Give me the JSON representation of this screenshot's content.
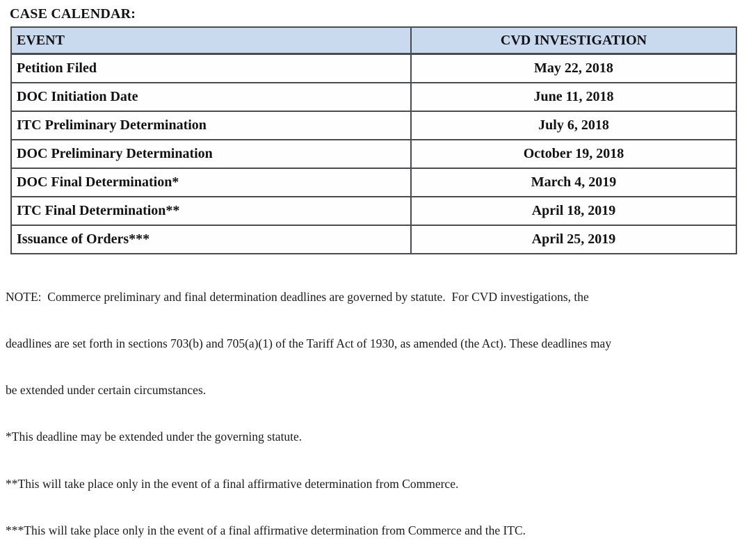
{
  "page_title": "CASE CALENDAR:",
  "table": {
    "columns": [
      "EVENT",
      "CVD INVESTIGATION"
    ],
    "rows": [
      {
        "event": "Petition Filed",
        "date": "May 22, 2018"
      },
      {
        "event": "DOC Initiation Date",
        "date": "June 11, 2018"
      },
      {
        "event": "ITC Preliminary Determination",
        "date": "July 6, 2018"
      },
      {
        "event": "DOC Preliminary Determination",
        "date": "October 19, 2018"
      },
      {
        "event": "DOC Final Determination*",
        "date": "March 4, 2019"
      },
      {
        "event": "ITC Final Determination**",
        "date": "April 18, 2019"
      },
      {
        "event": "Issuance of Orders***",
        "date": "April 25, 2019"
      }
    ],
    "header_bg_color": "#c9d9ee",
    "border_color": "#474c52"
  },
  "notes": {
    "note_line1": "NOTE:  Commerce preliminary and final determination deadlines are governed by statute.  For CVD investigations, the",
    "note_line2": "deadlines are set forth in sections 703(b) and 705(a)(1) of the Tariff Act of 1930, as amended (the Act). These deadlines may",
    "note_line3": "be extended under certain circumstances.",
    "footnote_1": "*This deadline may be extended under the governing statute.",
    "footnote_2": "**This will take place only in the event of a final affirmative determination from Commerce.",
    "footnote_3": "***This will take place only in the event of a final affirmative determination from Commerce and the ITC."
  }
}
